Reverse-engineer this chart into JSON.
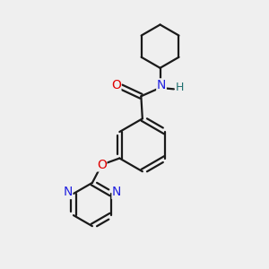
{
  "bg_color": "#efefef",
  "bond_color": "#1a1a1a",
  "bond_width": 1.6,
  "atom_colors": {
    "O": "#e00000",
    "N": "#2020e0",
    "H": "#207070",
    "C": "#1a1a1a"
  },
  "font_size_atom": 8.5,
  "fig_size": [
    3.0,
    3.0
  ],
  "dpi": 100
}
